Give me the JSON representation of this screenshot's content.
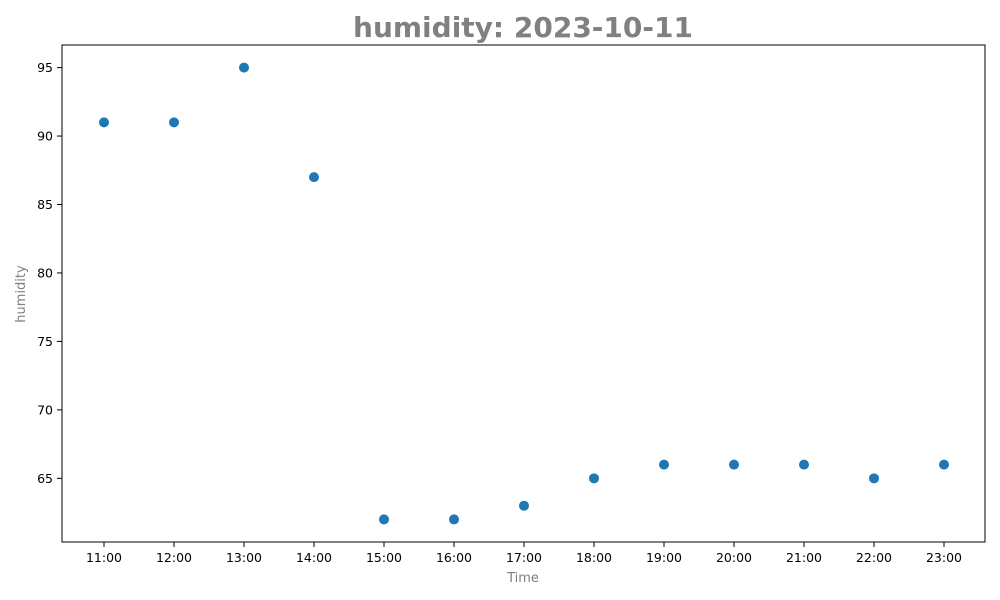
{
  "chart_data": {
    "type": "scatter",
    "title": "humidity: 2023-10-11",
    "xlabel": "Time",
    "ylabel": "humidity",
    "x": [
      "11:00",
      "12:00",
      "13:00",
      "14:00",
      "15:00",
      "16:00",
      "17:00",
      "18:00",
      "19:00",
      "20:00",
      "21:00",
      "22:00",
      "23:00"
    ],
    "y": [
      91,
      91,
      95,
      87,
      62,
      62,
      63,
      65,
      66,
      66,
      66,
      65,
      66
    ],
    "yticks": [
      65,
      70,
      75,
      80,
      85,
      90,
      95
    ],
    "ylim": [
      60.35,
      96.65
    ],
    "grid": false,
    "legend": "none",
    "colors": {
      "marker": "#1f77b4",
      "title": "#808080",
      "axis_label": "#808080",
      "tick": "#000000"
    }
  }
}
